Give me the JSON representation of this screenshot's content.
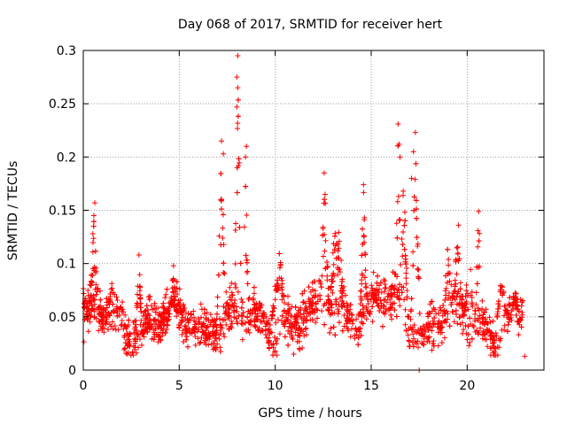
{
  "chart_data": {
    "type": "scatter",
    "title": "Day 068 of 2017, SRMTID for receiver hert",
    "xlabel": "GPS time / hours",
    "ylabel": "SRMTID / TECUs",
    "xlim": [
      0,
      24
    ],
    "ylim": [
      0,
      0.3
    ],
    "xticks": [
      0,
      5,
      10,
      15,
      20
    ],
    "xtick_labels": [
      "0",
      "5",
      "10",
      "15",
      "20"
    ],
    "yticks": [
      0,
      0.05,
      0.1,
      0.15,
      0.2,
      0.25,
      0.3
    ],
    "ytick_labels": [
      "0",
      "0.05",
      "0.1",
      "0.15",
      "0.2",
      "0.25",
      "0.3"
    ],
    "grid": true,
    "marker": "+",
    "color": "#ff0000",
    "series": [
      {
        "name": "SRMTID",
        "approx_points": 2600,
        "baseline": 0.045,
        "spread": 0.018,
        "peaks": [
          {
            "x": 0.55,
            "y": 0.157,
            "width": 0.25
          },
          {
            "x": 0.0,
            "y": 0.08,
            "width": 0.3
          },
          {
            "x": 1.5,
            "y": 0.085,
            "width": 0.3
          },
          {
            "x": 2.9,
            "y": 0.108,
            "width": 0.15
          },
          {
            "x": 4.7,
            "y": 0.098,
            "width": 0.2
          },
          {
            "x": 7.2,
            "y": 0.215,
            "width": 0.25
          },
          {
            "x": 8.05,
            "y": 0.295,
            "width": 0.2
          },
          {
            "x": 8.45,
            "y": 0.21,
            "width": 0.15
          },
          {
            "x": 10.2,
            "y": 0.115,
            "width": 0.4
          },
          {
            "x": 12.55,
            "y": 0.185,
            "width": 0.3
          },
          {
            "x": 13.2,
            "y": 0.155,
            "width": 0.5
          },
          {
            "x": 14.6,
            "y": 0.174,
            "width": 0.2
          },
          {
            "x": 16.4,
            "y": 0.231,
            "width": 0.2
          },
          {
            "x": 16.7,
            "y": 0.19,
            "width": 0.25
          },
          {
            "x": 17.3,
            "y": 0.223,
            "width": 0.25
          },
          {
            "x": 19.0,
            "y": 0.12,
            "width": 0.3
          },
          {
            "x": 19.5,
            "y": 0.136,
            "width": 0.3
          },
          {
            "x": 20.1,
            "y": 0.115,
            "width": 0.3
          },
          {
            "x": 20.6,
            "y": 0.149,
            "width": 0.2
          },
          {
            "x": 21.8,
            "y": 0.095,
            "width": 0.3
          },
          {
            "x": 22.5,
            "y": 0.075,
            "width": 0.3
          }
        ],
        "sample_points": [
          {
            "x": 0.6,
            "y": 0.157
          },
          {
            "x": 0.55,
            "y": 0.145
          },
          {
            "x": 0.5,
            "y": 0.128
          },
          {
            "x": 2.9,
            "y": 0.108
          },
          {
            "x": 4.7,
            "y": 0.098
          },
          {
            "x": 7.2,
            "y": 0.215
          },
          {
            "x": 7.3,
            "y": 0.203
          },
          {
            "x": 8.05,
            "y": 0.295
          },
          {
            "x": 8.0,
            "y": 0.275
          },
          {
            "x": 8.05,
            "y": 0.265
          },
          {
            "x": 8.0,
            "y": 0.247
          },
          {
            "x": 8.5,
            "y": 0.21
          },
          {
            "x": 8.45,
            "y": 0.2
          },
          {
            "x": 12.55,
            "y": 0.185
          },
          {
            "x": 12.6,
            "y": 0.165
          },
          {
            "x": 14.6,
            "y": 0.174
          },
          {
            "x": 14.65,
            "y": 0.143
          },
          {
            "x": 16.4,
            "y": 0.231
          },
          {
            "x": 16.45,
            "y": 0.212
          },
          {
            "x": 16.5,
            "y": 0.2
          },
          {
            "x": 17.3,
            "y": 0.223
          },
          {
            "x": 17.2,
            "y": 0.205
          },
          {
            "x": 17.1,
            "y": 0.18
          },
          {
            "x": 17.5,
            "y": 0.0
          },
          {
            "x": 19.55,
            "y": 0.136
          },
          {
            "x": 20.6,
            "y": 0.149
          },
          {
            "x": 23.0,
            "y": 0.013
          }
        ]
      }
    ]
  }
}
